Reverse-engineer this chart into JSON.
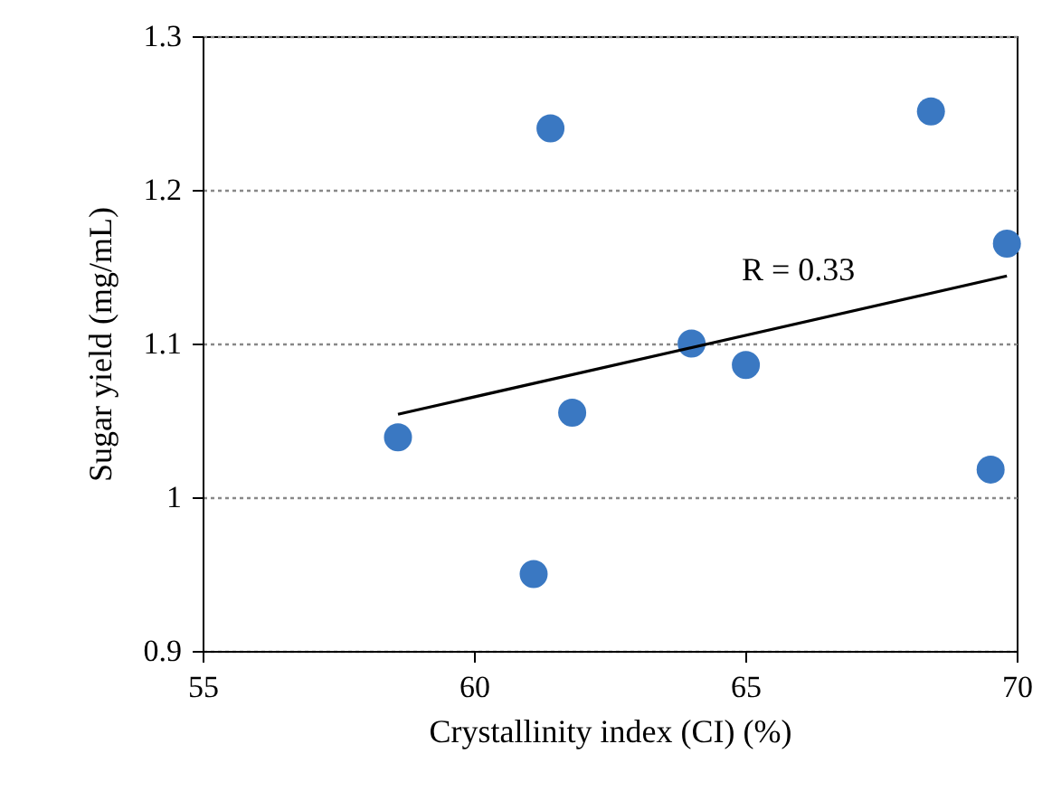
{
  "chart_data": {
    "type": "scatter",
    "xlabel": "Crystallinity index (CI) (%)",
    "ylabel": "Sugar yield (mg/mL)",
    "xlim": [
      55,
      70
    ],
    "xticks": [
      55,
      60,
      65,
      70
    ],
    "ylim": [
      0.9,
      1.3
    ],
    "yticks": [
      0.9,
      1,
      1.1,
      1.2,
      1.3
    ],
    "grid": "y",
    "marker": "circle",
    "series": [
      {
        "color": "#3a78c2",
        "x": [
          58.6,
          61.41,
          61.1,
          61.81,
          64.01,
          65.01,
          68.42,
          69.52,
          69.82
        ],
        "values": [
          1.039,
          1.24,
          0.95,
          1.055,
          1.1,
          1.086,
          1.251,
          1.018,
          1.165
        ]
      },
      {
        "type": "line",
        "color": "#000000",
        "line_style": "solid",
        "marker": "none",
        "x": [
          58.6,
          69.82
        ],
        "values": [
          1.054,
          1.144
        ]
      }
    ],
    "annotations": [
      "R = 0.33"
    ]
  }
}
